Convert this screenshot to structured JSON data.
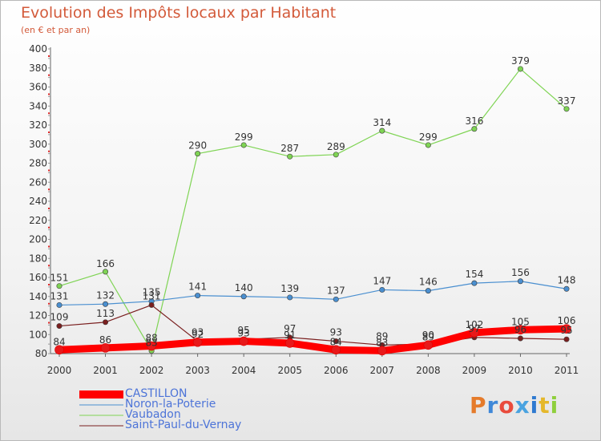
{
  "chart_data": {
    "type": "line",
    "title": "Evolution des Impôts locaux par Habitant",
    "subtitle": "(en € et par an)",
    "xlabel": "",
    "ylabel": "",
    "categories": [
      "2000",
      "2001",
      "2002",
      "2003",
      "2004",
      "2005",
      "2006",
      "2007",
      "2008",
      "2009",
      "2010",
      "2011"
    ],
    "ylim": [
      80,
      400
    ],
    "yticks": [
      80,
      100,
      120,
      140,
      160,
      180,
      200,
      220,
      240,
      260,
      280,
      300,
      320,
      340,
      360,
      380,
      400
    ],
    "grid": false,
    "legend_position": "bottom-left",
    "series": [
      {
        "name": "CASTILLON",
        "color": "#ff0000",
        "values": [
          84,
          86,
          88,
          92,
          93,
          91,
          84,
          83,
          89,
          102,
          105,
          106
        ],
        "labels": [
          "84",
          "86",
          "88",
          "92",
          "93",
          "91",
          "84",
          "83",
          "89",
          "102",
          "105",
          "106"
        ]
      },
      {
        "name": "Noron-la-Poterie",
        "color": "#4a8fd0",
        "values": [
          131,
          132,
          135,
          141,
          140,
          139,
          137,
          147,
          146,
          154,
          156,
          148
        ],
        "labels": [
          "131",
          "132",
          "135",
          "141",
          "140",
          "139",
          "137",
          "147",
          "146",
          "154",
          "156",
          "148"
        ]
      },
      {
        "name": "Vaubadon",
        "color": "#7fd454",
        "values": [
          151,
          166,
          83,
          290,
          299,
          287,
          289,
          314,
          299,
          316,
          379,
          337
        ],
        "labels": [
          "151",
          "166",
          "83",
          "290",
          "299",
          "287",
          "289",
          "314",
          "299",
          "316",
          "379",
          "337"
        ]
      },
      {
        "name": "Saint-Paul-du-Vernay",
        "color": "#7a1f1f",
        "values": [
          109,
          113,
          131,
          93,
          95,
          97,
          93,
          89,
          90,
          97,
          96,
          95
        ],
        "labels": [
          "109",
          "113",
          "131",
          "93",
          "95",
          "97",
          "93",
          "89",
          "90",
          "97",
          "96",
          "95"
        ]
      }
    ]
  },
  "logo": {
    "letters": [
      "P",
      "r",
      "o",
      "x",
      "i",
      "t",
      "i"
    ],
    "colors": [
      "#e57b2b",
      "#3f88d8",
      "#e94b3c",
      "#4aa3e0",
      "#2f7ad0",
      "#e5b82b",
      "#8fcf3c"
    ]
  }
}
